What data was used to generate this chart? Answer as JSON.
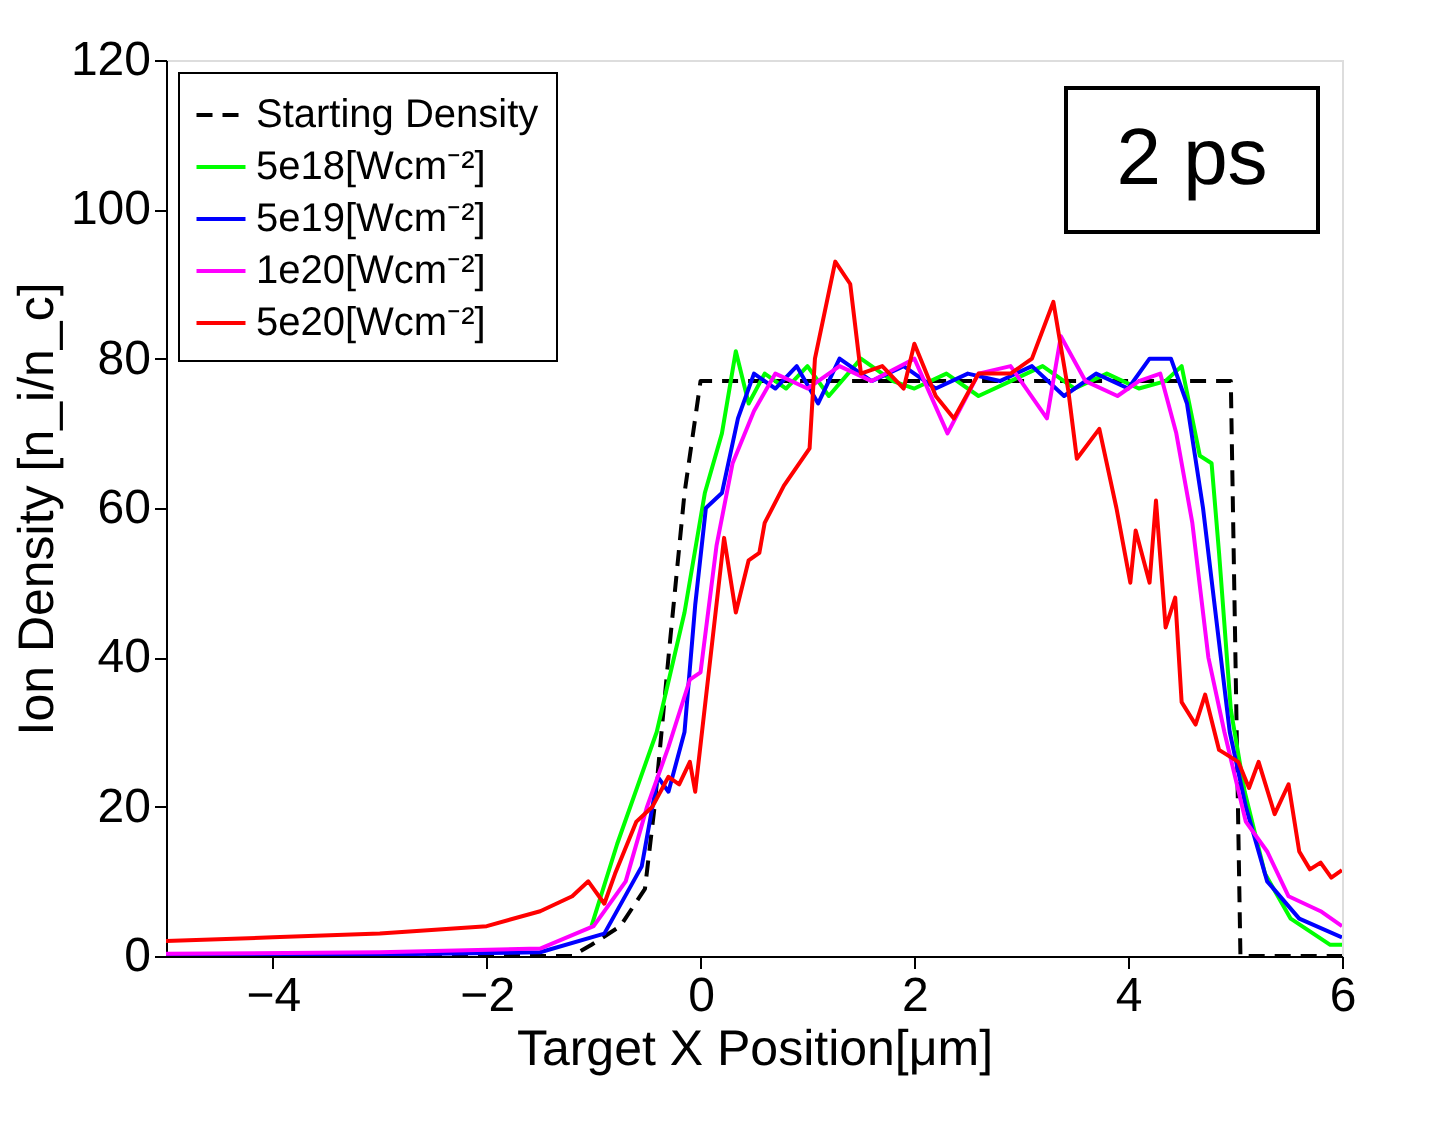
{
  "chart_data": {
    "type": "line",
    "xlabel": "Target X Position[μm]",
    "ylabel": "Ion Density [n_i/n_c]",
    "annotations": [
      "2 ps"
    ],
    "xlim": [
      -5,
      6
    ],
    "xticks": [
      -4,
      -2,
      0,
      2,
      4,
      6
    ],
    "ylim": [
      0,
      120
    ],
    "yticks": [
      0,
      20,
      40,
      60,
      80,
      100,
      120
    ],
    "grid": false,
    "legend": "top left",
    "marker": "none",
    "series": [
      {
        "name": "Starting Density",
        "color": "#000000",
        "line_style": "dashed",
        "x": [
          -5,
          -1.2,
          -1.02,
          -0.75,
          -0.52,
          -0.43,
          -0.3,
          -0.15,
          0,
          2,
          4.96,
          5.05,
          6
        ],
        "values": [
          0,
          0,
          1.5,
          4,
          9,
          20,
          40,
          62,
          77,
          77,
          77,
          0,
          0
        ]
      },
      {
        "name": "5e18[Wcm⁻²]",
        "color": "#00ff00",
        "line_style": "solid",
        "x": [
          -1.02,
          -0.78,
          -0.41,
          -0.15,
          0.04,
          0.2,
          0.33,
          0.45,
          0.6,
          0.8,
          1.0,
          1.2,
          1.5,
          1.8,
          2.0,
          2.3,
          2.6,
          2.9,
          3.2,
          3.5,
          3.8,
          4.1,
          4.35,
          4.5,
          4.67,
          4.78,
          4.85,
          4.96,
          5.09,
          5.28,
          5.52,
          5.89,
          6
        ],
        "values": [
          4,
          15,
          30,
          46,
          62,
          70,
          81,
          74,
          78,
          76,
          79,
          75,
          80,
          77,
          76,
          78,
          75,
          77,
          79,
          76,
          78,
          76,
          77,
          79,
          67,
          66,
          54,
          33,
          22,
          11,
          5,
          1.5,
          1.5
        ]
      },
      {
        "name": "5e19[Wcm⁻²]",
        "color": "#0000ff",
        "line_style": "solid",
        "x": [
          -5,
          -3,
          -1.5,
          -0.9,
          -0.55,
          -0.4,
          -0.3,
          -0.15,
          -0.05,
          0.05,
          0.2,
          0.35,
          0.5,
          0.7,
          0.9,
          1.1,
          1.3,
          1.6,
          1.9,
          2.2,
          2.5,
          2.8,
          3.1,
          3.4,
          3.7,
          4.0,
          4.2,
          4.4,
          4.55,
          4.7,
          4.85,
          4.95,
          5.1,
          5.3,
          5.6,
          6
        ],
        "values": [
          0,
          0.2,
          0.5,
          3,
          12,
          24,
          22,
          30,
          47,
          60,
          62,
          72,
          78,
          76,
          79,
          74,
          80,
          77,
          79,
          76,
          78,
          77,
          79,
          75,
          78,
          76,
          80,
          80,
          74,
          60,
          42,
          30,
          20,
          10,
          5,
          2.5
        ]
      },
      {
        "name": "1e20[Wcm⁻²]",
        "color": "#ff00ff",
        "line_style": "solid",
        "x": [
          -5,
          -3,
          -1.5,
          -1.0,
          -0.7,
          -0.5,
          -0.3,
          -0.1,
          0.0,
          0.15,
          0.3,
          0.5,
          0.7,
          1.0,
          1.3,
          1.6,
          2.0,
          2.31,
          2.6,
          2.9,
          3.24,
          3.37,
          3.6,
          3.9,
          4.1,
          4.3,
          4.45,
          4.6,
          4.75,
          4.9,
          5.1,
          5.3,
          5.5,
          5.8,
          6
        ],
        "values": [
          0.3,
          0.5,
          1,
          4,
          10,
          20,
          28,
          37,
          38,
          55,
          66,
          73,
          78,
          76,
          79,
          77,
          80,
          70,
          78,
          79,
          72,
          83,
          77,
          75,
          77,
          78,
          70,
          58,
          40,
          30,
          18,
          14,
          8,
          6,
          4
        ]
      },
      {
        "name": "5e20[Wcm⁻²]",
        "color": "#ff0000",
        "line_style": "solid",
        "x": [
          -5,
          -4,
          -3,
          -2,
          -1.5,
          -1.2,
          -1.05,
          -0.9,
          -0.8,
          -0.6,
          -0.45,
          -0.3,
          -0.2,
          -0.1,
          -0.05,
          0.22,
          0.33,
          0.45,
          0.55,
          0.6,
          0.78,
          1.02,
          1.07,
          1.26,
          1.4,
          1.5,
          1.7,
          1.9,
          2.0,
          2.2,
          2.37,
          2.6,
          2.9,
          3.1,
          3.3,
          3.44,
          3.52,
          3.73,
          3.89,
          4.02,
          4.07,
          4.2,
          4.26,
          4.35,
          4.44,
          4.5,
          4.63,
          4.72,
          4.85,
          5.03,
          5.13,
          5.22,
          5.37,
          5.5,
          5.6,
          5.7,
          5.8,
          5.9,
          6
        ],
        "values": [
          2,
          2.5,
          3,
          4,
          6,
          8,
          10,
          7,
          11,
          18,
          20,
          24,
          23,
          26,
          22,
          56,
          46,
          53,
          54,
          58,
          63,
          68,
          80,
          93,
          90,
          78,
          79,
          76,
          82,
          75,
          72,
          78,
          78,
          80,
          87.6,
          75.7,
          66.6,
          70.6,
          60,
          50,
          57,
          50,
          61,
          44,
          48,
          34,
          31,
          35,
          27.6,
          26,
          22.5,
          26,
          19,
          23,
          14,
          11.6,
          12.5,
          10.5,
          11.5
        ]
      }
    ]
  }
}
